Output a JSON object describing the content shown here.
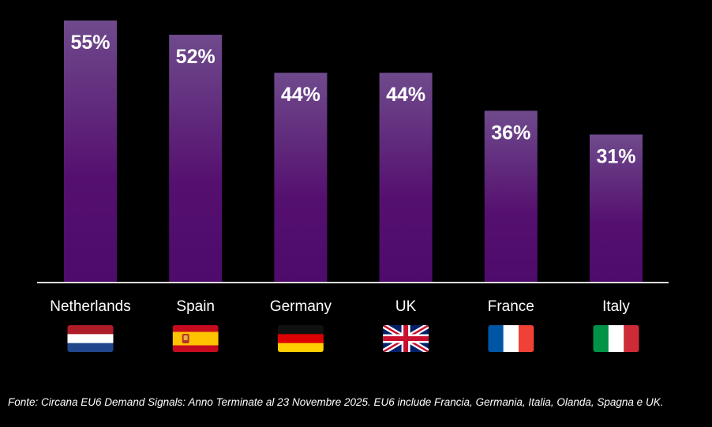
{
  "chart_data": {
    "type": "bar",
    "title": "",
    "xlabel": "",
    "ylabel": "",
    "ylim": [
      0,
      55
    ],
    "grid": false,
    "categories": [
      "Netherlands",
      "Spain",
      "Germany",
      "UK",
      "France",
      "Italy"
    ],
    "values": [
      55,
      52,
      44,
      44,
      36,
      31
    ],
    "data_labels": [
      "55%",
      "52%",
      "44%",
      "44%",
      "36%",
      "31%"
    ],
    "flags": [
      "netherlands-flag",
      "spain-flag",
      "germany-flag",
      "uk-flag",
      "france-flag",
      "italy-flag"
    ],
    "colors": {
      "bar_top": "#6f4a8c",
      "bar_bottom": "#4e0b6c",
      "background": "#000000",
      "text": "#ffffff"
    }
  },
  "source_note": "Fonte: Circana EU6 Demand Signals: Anno Terminate al 23 Novembre 2025. EU6 include Francia, Germania, Italia, Olanda, Spagna e UK."
}
